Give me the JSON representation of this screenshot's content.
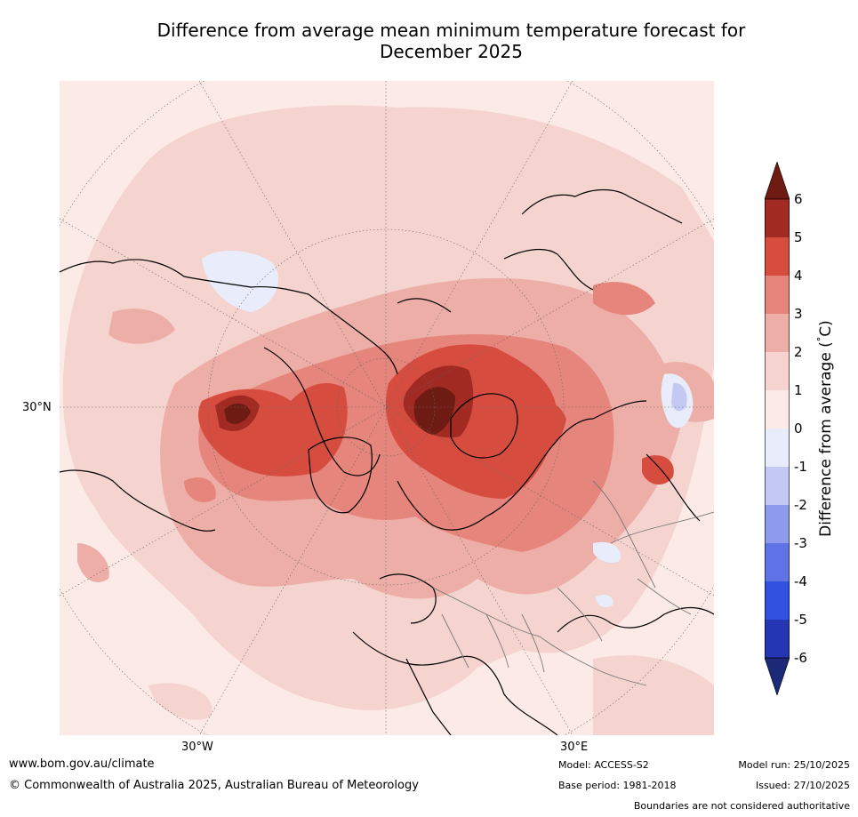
{
  "title_line1": "Difference from average mean minimum temperature forecast for",
  "title_line2": "December 2025",
  "map": {
    "projection": "north polar stereographic",
    "graticule_labels": {
      "lat_left": "30°N",
      "lon_left": "30°W",
      "lon_right": "30°E"
    }
  },
  "colorbar": {
    "label": "Difference from average (°C)",
    "label_unit_prefix": "Difference from average (",
    "label_unit_degree": "°",
    "label_unit_suffix": "C)",
    "ticks": [
      "6",
      "5",
      "4",
      "3",
      "2",
      "1",
      "0",
      "-1",
      "-2",
      "-3",
      "-4",
      "-5",
      "-6"
    ],
    "levels": [
      {
        "range": "above 6",
        "color": "#6e1b14"
      },
      {
        "range": "5 to 6",
        "color": "#a12a22"
      },
      {
        "range": "4 to 5",
        "color": "#d64d40"
      },
      {
        "range": "3 to 4",
        "color": "#e6857b"
      },
      {
        "range": "2 to 3",
        "color": "#edaea7"
      },
      {
        "range": "1 to 2",
        "color": "#f5d3cf"
      },
      {
        "range": "0 to 1",
        "color": "#fbeae6"
      },
      {
        "range": "-1 to 0",
        "color": "#e9ecfb"
      },
      {
        "range": "-2 to -1",
        "color": "#c3c9f3"
      },
      {
        "range": "-3 to -2",
        "color": "#8e9aec"
      },
      {
        "range": "-4 to -3",
        "color": "#5f73e6"
      },
      {
        "range": "-5 to -4",
        "color": "#3351e0"
      },
      {
        "range": "-6 to -5",
        "color": "#2536b5"
      },
      {
        "range": "below -6",
        "color": "#1c2878"
      }
    ]
  },
  "footer": {
    "website": "www.bom.gov.au/climate",
    "copyright": "© Commonwealth of Australia 2025, Australian Bureau of Meteorology",
    "model": "Model: ACCESS-S2",
    "base_period": "Base period: 1981-2018",
    "model_run": "Model run: 25/10/2025",
    "issued": "Issued: 27/10/2025",
    "disclaimer": "Boundaries are not considered authoritative"
  }
}
